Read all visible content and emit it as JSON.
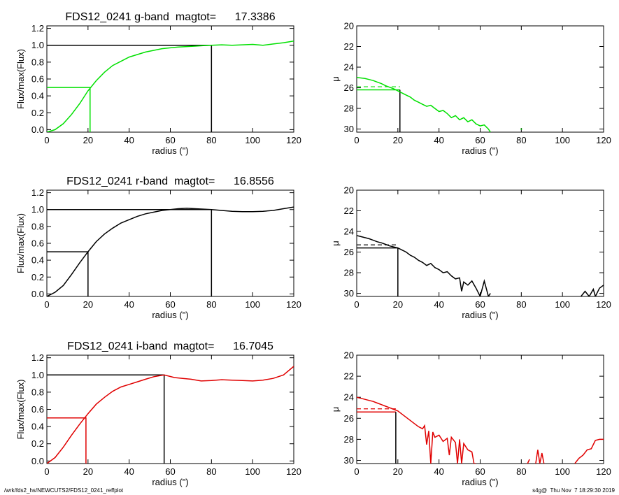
{
  "footer": {
    "left": "/wrk/fds2_hs/NEWCUTS2/FDS12_0241_reffplot",
    "right": "s4g@  Thu Nov  7 18:29:30 2019"
  },
  "chart_data": [
    {
      "type": "line",
      "title": "FDS12_0241 g-band  magtot=      17.3386",
      "xlabel": "radius (\")",
      "ylabel": "Flux/max(Flux)",
      "xlim": [
        0,
        120
      ],
      "ylim": [
        -0.03,
        1.23
      ],
      "xticks": [
        0,
        20,
        40,
        60,
        80,
        100,
        120
      ],
      "yticks": [
        0.0,
        0.2,
        0.4,
        0.6,
        0.8,
        1.0,
        1.2
      ],
      "ytick_labels": [
        "0.0",
        "0.2",
        "0.4",
        "0.6",
        "0.8",
        "1.0",
        "1.2"
      ],
      "color": "#00e000",
      "series": [
        {
          "x": [
            0,
            4,
            8,
            12,
            16,
            20,
            24,
            28,
            32,
            36,
            40,
            44,
            48,
            52,
            56,
            60,
            64,
            68,
            72,
            76,
            80,
            85,
            90,
            95,
            100,
            105,
            110,
            115,
            120
          ],
          "y": [
            -0.03,
            0.0,
            0.07,
            0.18,
            0.31,
            0.46,
            0.58,
            0.68,
            0.76,
            0.81,
            0.86,
            0.89,
            0.92,
            0.94,
            0.96,
            0.97,
            0.98,
            0.985,
            0.99,
            0.995,
            1.0,
            1.005,
            1.0,
            1.005,
            1.01,
            1.0,
            1.015,
            1.03,
            1.05
          ]
        }
      ],
      "markers": [
        {
          "x": 21,
          "y": 0.5,
          "color": "#00e000"
        },
        {
          "x": 80,
          "y": 1.0,
          "color": "#000000"
        }
      ]
    },
    {
      "type": "line",
      "xlabel": "radius (\")",
      "ylabel": "μ",
      "xlim": [
        0,
        120
      ],
      "ylim": [
        30.3,
        20
      ],
      "xticks": [
        0,
        20,
        40,
        60,
        80,
        100,
        120
      ],
      "yticks": [
        20,
        22,
        24,
        26,
        28,
        30
      ],
      "ytick_labels": [
        "20",
        "22",
        "24",
        "26",
        "28",
        "30"
      ],
      "color": "#00e000",
      "series": [
        {
          "x": [
            0,
            2,
            4,
            6,
            8,
            10,
            12,
            14,
            16,
            18,
            20,
            22,
            24,
            26,
            28,
            30,
            32,
            34,
            36,
            38,
            40,
            42,
            44,
            46,
            48,
            50,
            52,
            54,
            56,
            58,
            60,
            62,
            64,
            65
          ],
          "y": [
            25.0,
            25.05,
            25.1,
            25.2,
            25.3,
            25.45,
            25.6,
            25.8,
            25.95,
            26.1,
            26.3,
            26.5,
            26.7,
            26.9,
            27.2,
            27.4,
            27.6,
            27.8,
            27.7,
            28.0,
            28.3,
            28.2,
            28.5,
            28.9,
            28.7,
            29.1,
            28.9,
            29.3,
            29.1,
            29.5,
            29.7,
            29.6,
            30.0,
            30.3
          ]
        },
        {
          "x": [
            79.6,
            80.4
          ],
          "y": [
            30.0,
            30.0
          ]
        }
      ],
      "reference": {
        "mu_solid": 26.2,
        "mu_dashed": 25.9,
        "x_marker": 21,
        "marker_color": "#00e000"
      }
    },
    {
      "type": "line",
      "title": "FDS12_0241 r-band  magtot=      16.8556",
      "xlabel": "radius (\")",
      "ylabel": "Flux/max(Flux)",
      "xlim": [
        0,
        120
      ],
      "ylim": [
        -0.03,
        1.23
      ],
      "xticks": [
        0,
        20,
        40,
        60,
        80,
        100,
        120
      ],
      "yticks": [
        0.0,
        0.2,
        0.4,
        0.6,
        0.8,
        1.0,
        1.2
      ],
      "ytick_labels": [
        "0.0",
        "0.2",
        "0.4",
        "0.6",
        "0.8",
        "1.0",
        "1.2"
      ],
      "color": "#000000",
      "series": [
        {
          "x": [
            0,
            4,
            8,
            12,
            16,
            20,
            24,
            28,
            32,
            36,
            40,
            44,
            48,
            52,
            56,
            60,
            64,
            68,
            72,
            76,
            80,
            85,
            90,
            95,
            100,
            105,
            110,
            115,
            120
          ],
          "y": [
            -0.03,
            0.02,
            0.1,
            0.23,
            0.37,
            0.5,
            0.62,
            0.71,
            0.78,
            0.84,
            0.88,
            0.92,
            0.95,
            0.97,
            0.99,
            1.0,
            1.01,
            1.015,
            1.01,
            1.005,
            1.0,
            0.99,
            0.98,
            0.975,
            0.975,
            0.98,
            0.99,
            1.01,
            1.03
          ]
        }
      ],
      "markers": [
        {
          "x": 20,
          "y": 0.5,
          "color": "#000000"
        },
        {
          "x": 80,
          "y": 1.0,
          "color": "#000000"
        }
      ]
    },
    {
      "type": "line",
      "xlabel": "radius (\")",
      "ylabel": "μ",
      "xlim": [
        0,
        120
      ],
      "ylim": [
        30.3,
        20
      ],
      "xticks": [
        0,
        20,
        40,
        60,
        80,
        100,
        120
      ],
      "yticks": [
        20,
        22,
        24,
        26,
        28,
        30
      ],
      "ytick_labels": [
        "20",
        "22",
        "24",
        "26",
        "28",
        "30"
      ],
      "color": "#000000",
      "series": [
        {
          "x": [
            0,
            2,
            4,
            6,
            8,
            10,
            12,
            14,
            16,
            18,
            20,
            22,
            24,
            26,
            28,
            30,
            32,
            34,
            36,
            38,
            40,
            42,
            44,
            46,
            48,
            50,
            51,
            52,
            54,
            56,
            58,
            60,
            62,
            64,
            65
          ],
          "y": [
            24.4,
            24.5,
            24.6,
            24.7,
            24.85,
            25.0,
            25.1,
            25.25,
            25.4,
            25.5,
            25.6,
            25.8,
            26.0,
            26.3,
            26.5,
            26.8,
            27.0,
            27.3,
            27.1,
            27.5,
            27.7,
            28.0,
            27.9,
            28.3,
            28.6,
            28.5,
            29.8,
            28.9,
            29.2,
            28.8,
            29.5,
            30.3,
            28.8,
            30.3,
            30.0
          ]
        },
        {
          "x": [
            109,
            111,
            113,
            115,
            116,
            118,
            120
          ],
          "y": [
            30.3,
            29.8,
            30.3,
            29.6,
            30.3,
            29.5,
            29.2
          ]
        }
      ],
      "reference": {
        "mu_solid": 25.6,
        "mu_dashed": 25.3,
        "x_marker": 20,
        "marker_color": "#000000"
      }
    },
    {
      "type": "line",
      "title": "FDS12_0241 i-band  magtot=      16.7045",
      "xlabel": "radius (\")",
      "ylabel": "Flux/max(Flux)",
      "xlim": [
        0,
        120
      ],
      "ylim": [
        -0.03,
        1.23
      ],
      "xticks": [
        0,
        20,
        40,
        60,
        80,
        100,
        120
      ],
      "yticks": [
        0.0,
        0.2,
        0.4,
        0.6,
        0.8,
        1.0,
        1.2
      ],
      "ytick_labels": [
        "0.0",
        "0.2",
        "0.4",
        "0.6",
        "0.8",
        "1.0",
        "1.2"
      ],
      "color": "#e00000",
      "series": [
        {
          "x": [
            0,
            4,
            8,
            12,
            16,
            20,
            24,
            28,
            32,
            36,
            40,
            44,
            48,
            52,
            57,
            62,
            66,
            70,
            75,
            80,
            85,
            90,
            95,
            100,
            105,
            110,
            115,
            120
          ],
          "y": [
            -0.03,
            0.04,
            0.16,
            0.3,
            0.43,
            0.55,
            0.66,
            0.74,
            0.81,
            0.86,
            0.89,
            0.92,
            0.95,
            0.98,
            1.0,
            0.97,
            0.96,
            0.95,
            0.93,
            0.935,
            0.945,
            0.94,
            0.935,
            0.93,
            0.94,
            0.96,
            1.0,
            1.1
          ]
        }
      ],
      "markers": [
        {
          "x": 19,
          "y": 0.5,
          "color": "#e00000"
        },
        {
          "x": 57,
          "y": 1.0,
          "color": "#000000"
        }
      ]
    },
    {
      "type": "line",
      "xlabel": "radius (\")",
      "ylabel": "μ",
      "xlim": [
        0,
        120
      ],
      "ylim": [
        30.3,
        20
      ],
      "xticks": [
        0,
        20,
        40,
        60,
        80,
        100,
        120
      ],
      "yticks": [
        20,
        22,
        24,
        26,
        28,
        30
      ],
      "ytick_labels": [
        "20",
        "22",
        "24",
        "26",
        "28",
        "30"
      ],
      "color": "#e00000",
      "series": [
        {
          "x": [
            0,
            2,
            4,
            6,
            8,
            10,
            12,
            14,
            16,
            18,
            20,
            22,
            24,
            26,
            28,
            30,
            32,
            33,
            34,
            35,
            36,
            37,
            38,
            40,
            42,
            44,
            45,
            46,
            48,
            49,
            50,
            51,
            52,
            54,
            56,
            57,
            58
          ],
          "y": [
            24.0,
            24.1,
            24.2,
            24.3,
            24.4,
            24.55,
            24.7,
            24.85,
            25.0,
            25.15,
            25.3,
            25.6,
            25.9,
            26.2,
            26.5,
            26.8,
            27.0,
            26.7,
            28.5,
            27.2,
            30.3,
            27.3,
            27.8,
            27.6,
            28.2,
            27.9,
            29.5,
            27.8,
            28.3,
            30.3,
            28.0,
            30.3,
            28.4,
            29.0,
            29.2,
            30.3,
            30.3
          ]
        },
        {
          "x": [
            83,
            84
          ],
          "y": [
            30.3,
            29.9
          ]
        },
        {
          "x": [
            87,
            88,
            89,
            90,
            91
          ],
          "y": [
            30.3,
            29.0,
            30.3,
            29.3,
            30.3
          ]
        },
        {
          "x": [
            106,
            108,
            110,
            112,
            114,
            116,
            118,
            120
          ],
          "y": [
            30.3,
            29.8,
            29.5,
            29.0,
            28.9,
            28.1,
            28.0,
            28.0
          ]
        }
      ],
      "reference": {
        "mu_solid": 25.4,
        "mu_dashed": 25.1,
        "x_marker": 19,
        "marker_color": "#e00000"
      }
    }
  ]
}
